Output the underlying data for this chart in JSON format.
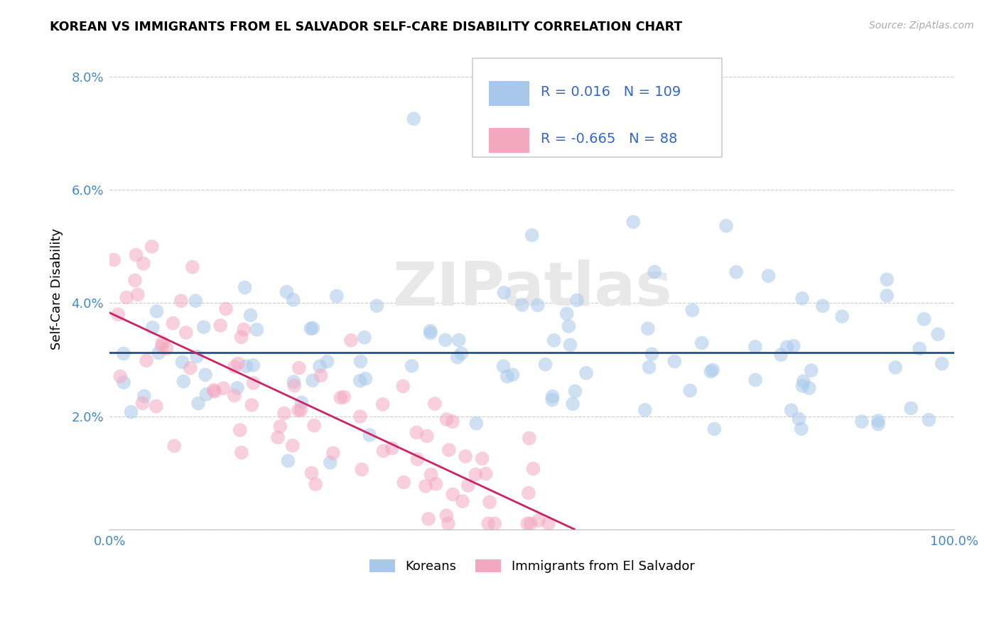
{
  "title": "KOREAN VS IMMIGRANTS FROM EL SALVADOR SELF-CARE DISABILITY CORRELATION CHART",
  "source": "Source: ZipAtlas.com",
  "ylabel": "Self-Care Disability",
  "xlim": [
    0.0,
    1.0
  ],
  "ylim": [
    0.0,
    0.085
  ],
  "ytick_vals": [
    0.0,
    0.02,
    0.04,
    0.06,
    0.08
  ],
  "ytick_labels": [
    "",
    "2.0%",
    "4.0%",
    "6.0%",
    "8.0%"
  ],
  "xtick_vals": [
    0.0,
    1.0
  ],
  "xtick_labels": [
    "0.0%",
    "100.0%"
  ],
  "korean_R": "0.016",
  "korean_N": "109",
  "salvador_R": "-0.665",
  "salvador_N": "88",
  "korean_color": "#a8c8ea",
  "salvador_color": "#f4a8c0",
  "korean_line_color": "#1a5296",
  "salvador_line_color": "#cc2266",
  "legend_text_color": "#3366cc",
  "watermark": "ZIPatlas",
  "legend_labels": [
    "Koreans",
    "Immigrants from El Salvador"
  ],
  "tick_color": "#4488cc",
  "grid_color": "#cccccc",
  "spine_color": "#bbbbbb"
}
